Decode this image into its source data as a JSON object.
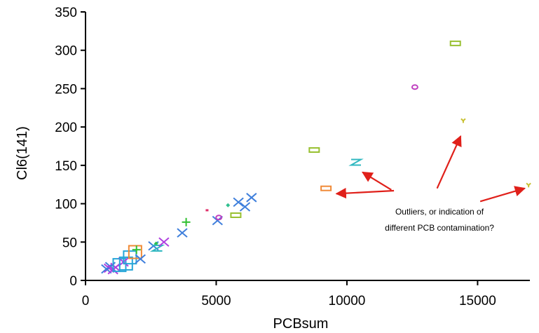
{
  "chart_data": {
    "type": "scatter",
    "xlabel": "PCBsum",
    "ylabel": "Cl6(141)",
    "xlim": [
      0,
      17000
    ],
    "ylim": [
      0,
      350
    ],
    "xticks": [
      "0",
      "5000",
      "10000",
      "15000"
    ],
    "xtick_values": [
      0,
      5000,
      10000,
      15000
    ],
    "yticks": [
      "0",
      "50",
      "100",
      "150",
      "200",
      "250",
      "300",
      "350"
    ],
    "ytick_values": [
      0,
      50,
      100,
      150,
      200,
      250,
      300,
      350
    ],
    "grid": false,
    "annotation": {
      "lines": [
        "Outliers, or indication of",
        "different PCB contamination?"
      ]
    },
    "points": [
      {
        "x": 800,
        "y": 15,
        "marker": "x",
        "color": "#3f7fdc"
      },
      {
        "x": 900,
        "y": 16,
        "marker": "x",
        "color": "#b040e0"
      },
      {
        "x": 950,
        "y": 18,
        "marker": "x",
        "color": "#3f7fdc"
      },
      {
        "x": 1050,
        "y": 14,
        "marker": "x",
        "color": "#b040e0"
      },
      {
        "x": 1150,
        "y": 17,
        "marker": "x",
        "color": "#b040e0"
      },
      {
        "x": 1300,
        "y": 20,
        "marker": "square",
        "color": "#26a6d8"
      },
      {
        "x": 1450,
        "y": 24,
        "marker": "x",
        "color": "#b040e0"
      },
      {
        "x": 1550,
        "y": 22,
        "marker": "square",
        "color": "#26a6d8"
      },
      {
        "x": 1700,
        "y": 30,
        "marker": "square",
        "color": "#26a6d8"
      },
      {
        "x": 1900,
        "y": 37,
        "marker": "square",
        "color": "#f08a36"
      },
      {
        "x": 1950,
        "y": 40,
        "marker": "plus",
        "color": "#30c030"
      },
      {
        "x": 2100,
        "y": 28,
        "marker": "x",
        "color": "#3f7fdc"
      },
      {
        "x": 2600,
        "y": 45,
        "marker": "x",
        "color": "#3f7fdc"
      },
      {
        "x": 2700,
        "y": 48,
        "marker": "diamond",
        "color": "#30c050"
      },
      {
        "x": 2750,
        "y": 42,
        "marker": "z",
        "color": "#30b8c0"
      },
      {
        "x": 3000,
        "y": 50,
        "marker": "x",
        "color": "#b040e0"
      },
      {
        "x": 3700,
        "y": 62,
        "marker": "x",
        "color": "#3f7fdc"
      },
      {
        "x": 3850,
        "y": 76,
        "marker": "plus",
        "color": "#30c030"
      },
      {
        "x": 4650,
        "y": 91,
        "marker": "dash",
        "color": "#e0306a"
      },
      {
        "x": 5050,
        "y": 78,
        "marker": "x",
        "color": "#3f7fdc"
      },
      {
        "x": 5100,
        "y": 82,
        "marker": "circle",
        "color": "#c040c0"
      },
      {
        "x": 5450,
        "y": 98,
        "marker": "diamond",
        "color": "#30c090"
      },
      {
        "x": 5750,
        "y": 85,
        "marker": "rect",
        "color": "#98c030"
      },
      {
        "x": 5850,
        "y": 102,
        "marker": "x",
        "color": "#3f7fdc"
      },
      {
        "x": 6100,
        "y": 96,
        "marker": "x",
        "color": "#3f7fdc"
      },
      {
        "x": 6350,
        "y": 108,
        "marker": "x",
        "color": "#3f7fdc"
      },
      {
        "x": 8750,
        "y": 170,
        "marker": "rect",
        "color": "#98c030"
      },
      {
        "x": 9200,
        "y": 120,
        "marker": "rect",
        "color": "#f08a36"
      },
      {
        "x": 10350,
        "y": 154,
        "marker": "z",
        "color": "#30b8c0"
      },
      {
        "x": 12600,
        "y": 252,
        "marker": "circle",
        "color": "#c040c0"
      },
      {
        "x": 14150,
        "y": 309,
        "marker": "rect",
        "color": "#98c030"
      },
      {
        "x": 14450,
        "y": 208,
        "marker": "y",
        "color": "#c8c030"
      },
      {
        "x": 16950,
        "y": 124,
        "marker": "y",
        "color": "#c8c030"
      }
    ],
    "annotation_arrows": [
      {
        "from": [
          11800,
          117
        ],
        "to": [
          9600,
          113
        ]
      },
      {
        "from": [
          11700,
          118
        ],
        "to": [
          10600,
          141
        ]
      },
      {
        "from": [
          13450,
          120
        ],
        "to": [
          14350,
          188
        ]
      },
      {
        "from": [
          15100,
          103
        ],
        "to": [
          16800,
          120
        ]
      }
    ],
    "arrow_color": "#e0201a"
  }
}
